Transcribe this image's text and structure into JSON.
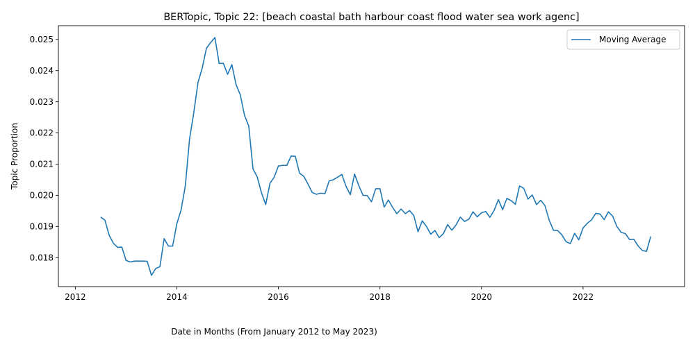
{
  "chart_data": {
    "type": "line",
    "title": "BERTopic, Topic 22: [beach coastal bath harbour coast flood water sea work agenc]",
    "xlabel": "Date in Months (From January 2012 to May 2023)",
    "ylabel": "Topic Proportion",
    "xlim": [
      "2011-09",
      "2024-01"
    ],
    "ylim": [
      0.01707,
      0.02544
    ],
    "x_ticks": [
      "2012",
      "2014",
      "2016",
      "2018",
      "2020",
      "2022"
    ],
    "y_ticks": [
      "0.018",
      "0.019",
      "0.020",
      "0.021",
      "0.022",
      "0.023",
      "0.024",
      "0.025"
    ],
    "grid": false,
    "legend_position": "top-right",
    "series": [
      {
        "name": "Moving Average",
        "color": "#1f77b4",
        "x": [
          "2012-07",
          "2012-08",
          "2012-09",
          "2012-10",
          "2012-11",
          "2012-12",
          "2013-01",
          "2013-02",
          "2013-03",
          "2013-04",
          "2013-05",
          "2013-06",
          "2013-07",
          "2013-08",
          "2013-09",
          "2013-10",
          "2013-11",
          "2013-12",
          "2014-01",
          "2014-02",
          "2014-03",
          "2014-04",
          "2014-05",
          "2014-06",
          "2014-07",
          "2014-08",
          "2014-09",
          "2014-10",
          "2014-11",
          "2014-12",
          "2015-01",
          "2015-02",
          "2015-03",
          "2015-04",
          "2015-05",
          "2015-06",
          "2015-07",
          "2015-08",
          "2015-09",
          "2015-10",
          "2015-11",
          "2015-12",
          "2016-01",
          "2016-02",
          "2016-03",
          "2016-04",
          "2016-05",
          "2016-06",
          "2016-07",
          "2016-08",
          "2016-09",
          "2016-10",
          "2016-11",
          "2016-12",
          "2017-01",
          "2017-02",
          "2017-03",
          "2017-04",
          "2017-05",
          "2017-06",
          "2017-07",
          "2017-08",
          "2017-09",
          "2017-10",
          "2017-11",
          "2017-12",
          "2018-01",
          "2018-02",
          "2018-03",
          "2018-04",
          "2018-05",
          "2018-06",
          "2018-07",
          "2018-08",
          "2018-09",
          "2018-10",
          "2018-11",
          "2018-12",
          "2019-01",
          "2019-02",
          "2019-03",
          "2019-04",
          "2019-05",
          "2019-06",
          "2019-07",
          "2019-08",
          "2019-09",
          "2019-10",
          "2019-11",
          "2019-12",
          "2020-01",
          "2020-02",
          "2020-03",
          "2020-04",
          "2020-05",
          "2020-06",
          "2020-07",
          "2020-08",
          "2020-09",
          "2020-10",
          "2020-11",
          "2020-12",
          "2021-01",
          "2021-02",
          "2021-03",
          "2021-04",
          "2021-05",
          "2021-06",
          "2021-07",
          "2021-08",
          "2021-09",
          "2021-10",
          "2021-11",
          "2021-12",
          "2022-01",
          "2022-02",
          "2022-03",
          "2022-04",
          "2022-05",
          "2022-06",
          "2022-07",
          "2022-08",
          "2022-09",
          "2022-10",
          "2022-11",
          "2022-12",
          "2023-01",
          "2023-02",
          "2023-03",
          "2023-04",
          "2023-05"
        ],
        "values": [
          0.0193,
          0.0192,
          0.01872,
          0.01846,
          0.01833,
          0.01834,
          0.01791,
          0.01786,
          0.01789,
          0.01789,
          0.01789,
          0.01788,
          0.01743,
          0.01765,
          0.01771,
          0.01861,
          0.01837,
          0.01837,
          0.01909,
          0.01953,
          0.0203,
          0.0218,
          0.02265,
          0.02362,
          0.02408,
          0.02472,
          0.0249,
          0.02506,
          0.02423,
          0.02423,
          0.02388,
          0.02419,
          0.02355,
          0.02322,
          0.02256,
          0.02222,
          0.02084,
          0.02059,
          0.02008,
          0.0197,
          0.02038,
          0.02058,
          0.02094,
          0.02096,
          0.02096,
          0.02126,
          0.02125,
          0.02071,
          0.02061,
          0.02036,
          0.02009,
          0.02003,
          0.02007,
          0.02005,
          0.02046,
          0.0205,
          0.02058,
          0.02067,
          0.02028,
          0.02002,
          0.02068,
          0.02031,
          0.02,
          0.01999,
          0.01979,
          0.02021,
          0.02021,
          0.01962,
          0.01985,
          0.01961,
          0.01941,
          0.01956,
          0.01941,
          0.01951,
          0.01935,
          0.01883,
          0.01918,
          0.019,
          0.01875,
          0.01887,
          0.01864,
          0.01877,
          0.01906,
          0.01888,
          0.01905,
          0.0193,
          0.01916,
          0.01923,
          0.01947,
          0.01931,
          0.01944,
          0.01948,
          0.01929,
          0.01952,
          0.01986,
          0.01954,
          0.0199,
          0.01983,
          0.01971,
          0.0203,
          0.02022,
          0.01988,
          0.02001,
          0.0197,
          0.01984,
          0.01967,
          0.0192,
          0.01888,
          0.01887,
          0.01873,
          0.01851,
          0.01845,
          0.01878,
          0.01857,
          0.01895,
          0.0191,
          0.01921,
          0.01942,
          0.0194,
          0.01922,
          0.01947,
          0.01933,
          0.019,
          0.01881,
          0.01877,
          0.01858,
          0.01859,
          0.01838,
          0.01823,
          0.0182,
          0.01868
        ]
      }
    ]
  }
}
